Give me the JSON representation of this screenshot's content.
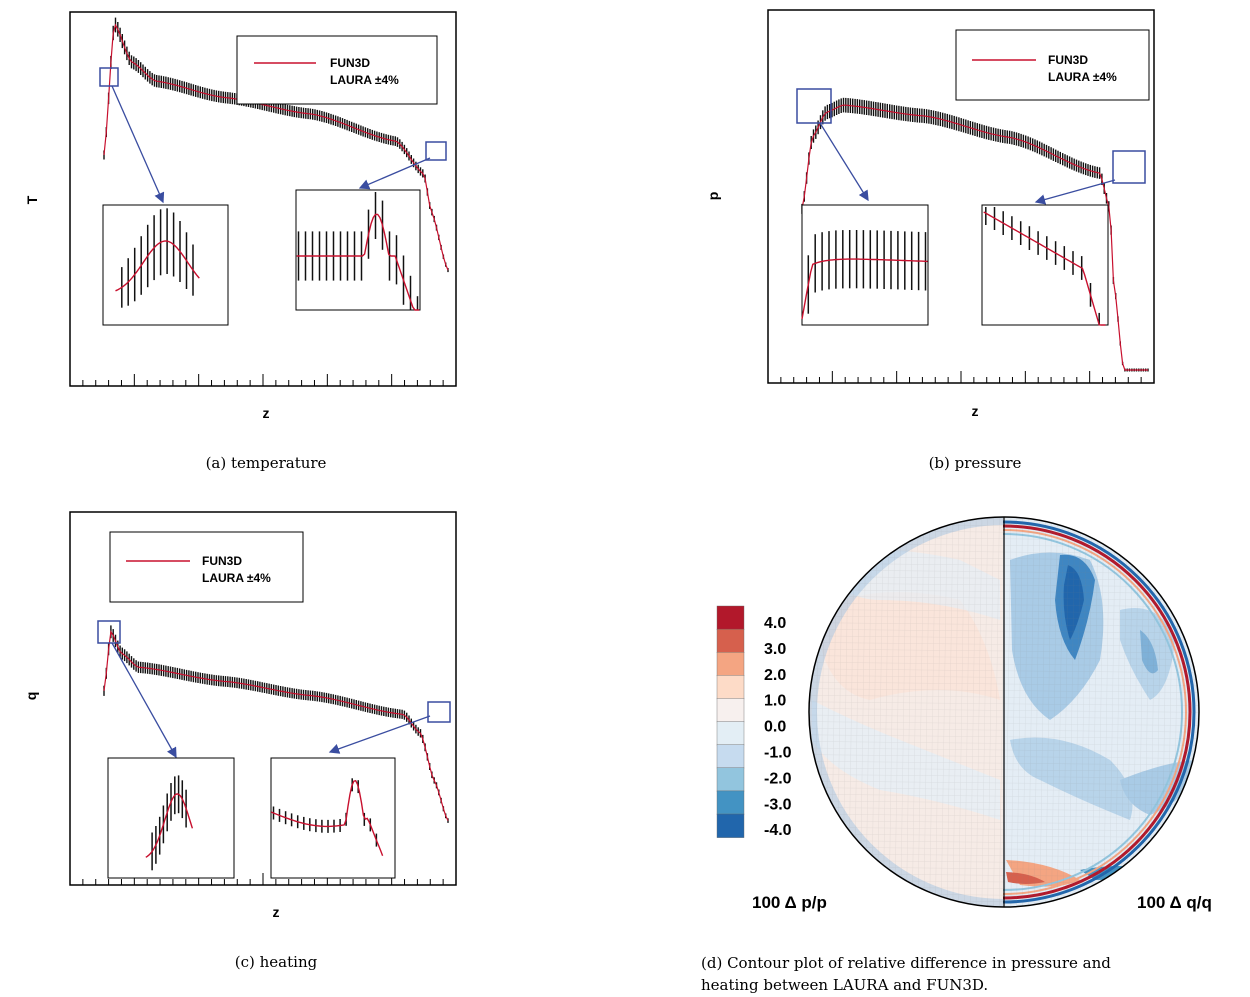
{
  "chart_data": [
    {
      "id": "temperature",
      "type": "line",
      "caption": "(a) temperature",
      "xlabel": "z",
      "ylabel": "T",
      "legend": {
        "placement": "top-right",
        "entries": [
          "FUN3D",
          "LAURA ±4%"
        ]
      },
      "xlim": [
        0,
        1
      ],
      "ylim": [
        0,
        1
      ],
      "grid": false,
      "series": [
        {
          "name": "FUN3D",
          "color": "#c8102e",
          "style": "line"
        },
        {
          "name": "LAURA ±4%",
          "color": "#000000",
          "style": "error-bars"
        }
      ],
      "profile": {
        "x": [
          0,
          0.03,
          0.08,
          0.15,
          0.35,
          0.6,
          0.85,
          0.93,
          0.95,
          1.0
        ],
        "y": [
          0.5,
          0.98,
          0.84,
          0.77,
          0.71,
          0.65,
          0.55,
          0.43,
          0.3,
          0.08
        ]
      },
      "rel_error": 0.04,
      "insets": 2
    },
    {
      "id": "pressure",
      "type": "line",
      "caption": "(b) pressure",
      "xlabel": "z",
      "ylabel": "p",
      "legend": {
        "placement": "top-right",
        "entries": [
          "FUN3D",
          "LAURA ±4%"
        ]
      },
      "xlim": [
        0,
        1
      ],
      "ylim": [
        0,
        1
      ],
      "grid": false,
      "series": [
        {
          "name": "FUN3D",
          "color": "#c8102e",
          "style": "line"
        },
        {
          "name": "LAURA ±4%",
          "color": "#000000",
          "style": "error-bars"
        }
      ],
      "profile": {
        "x": [
          0,
          0.03,
          0.07,
          0.12,
          0.35,
          0.6,
          0.86,
          0.89,
          0.9,
          0.93
        ],
        "y": [
          0.45,
          0.65,
          0.72,
          0.74,
          0.71,
          0.65,
          0.55,
          0.45,
          0.25,
          0.0
        ]
      },
      "rel_error": 0.04,
      "insets": 2
    },
    {
      "id": "heating",
      "type": "line",
      "caption": "(c) heating",
      "xlabel": "z",
      "ylabel": "q",
      "legend": {
        "placement": "top-left",
        "entries": [
          "FUN3D",
          "LAURA ±4%"
        ]
      },
      "xlim": [
        0,
        1
      ],
      "ylim": [
        0,
        1
      ],
      "grid": false,
      "series": [
        {
          "name": "FUN3D",
          "color": "#c8102e",
          "style": "line"
        },
        {
          "name": "LAURA ±4%",
          "color": "#000000",
          "style": "error-bars"
        }
      ],
      "profile": {
        "x": [
          0,
          0.02,
          0.05,
          0.1,
          0.35,
          0.6,
          0.87,
          0.92,
          0.96,
          1.0
        ],
        "y": [
          0.7,
          0.95,
          0.86,
          0.8,
          0.74,
          0.68,
          0.6,
          0.52,
          0.32,
          0.15
        ]
      },
      "rel_error": 0.04,
      "insets": 2
    },
    {
      "id": "contour",
      "type": "heatmap",
      "caption_lines": [
        "(d) Contour plot of relative difference in pressure and",
        "heating between LAURA and FUN3D."
      ],
      "left_label": "100 Δ p/p",
      "right_label": "100 Δ q/q",
      "colorbar": {
        "levels": [
          "4.0",
          "3.0",
          "2.0",
          "1.0",
          "0.0",
          "-1.0",
          "-2.0",
          "-3.0",
          "-4.0"
        ],
        "colors": [
          "#b2182b",
          "#d6604d",
          "#f4a582",
          "#fddbc7",
          "#f7f0ee",
          "#e3eef5",
          "#c6dbef",
          "#92c5de",
          "#4393c3",
          "#2166ac"
        ]
      }
    }
  ]
}
